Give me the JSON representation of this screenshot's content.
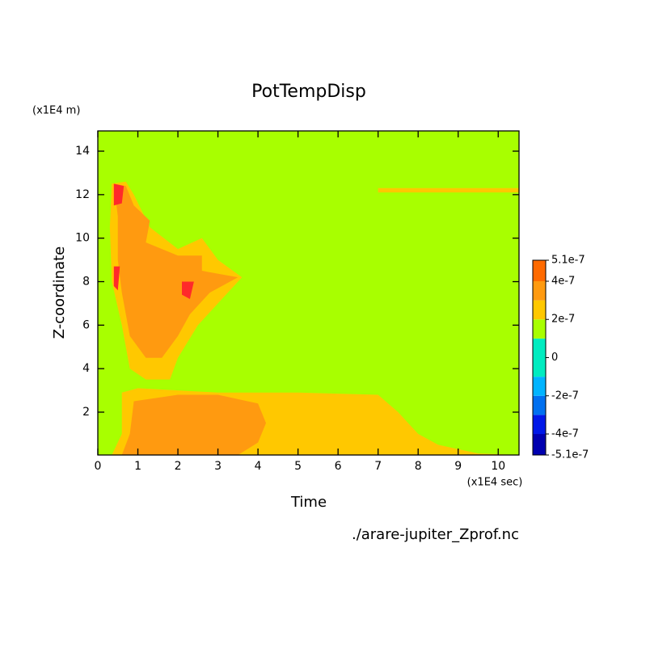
{
  "chart_data": {
    "type": "contour",
    "title": "PotTempDisp",
    "x_label": "Time",
    "x_unit": "(x1E4 sec)",
    "y_label": "Z-coordinate",
    "y_unit": "(x1E4 m)",
    "footer": "./arare-jupiter_Zprof.nc",
    "xlim": [
      0,
      10.52
    ],
    "ylim": [
      0.03,
      14.93
    ],
    "xticks": [
      0,
      1,
      2,
      3,
      4,
      5,
      6,
      7,
      8,
      9,
      10
    ],
    "yticks": [
      2,
      4,
      6,
      8,
      10,
      12,
      14
    ],
    "background_color": "#a8ff00",
    "levels": [
      -5.1e-07,
      -4e-07,
      -3e-07,
      -2e-07,
      -1e-07,
      1e-07,
      2e-07,
      3e-07,
      4e-07,
      5.1e-07
    ],
    "level_colors": [
      "#0000b0",
      "#0018e8",
      "#0070f0",
      "#00b4ff",
      "#00ecc0",
      "#a8ff00",
      "#ffc800",
      "#ff9a10",
      "#ff6a00",
      "#ff2a2a"
    ],
    "colorbar_ticks": [
      {
        "value": 5.1e-07,
        "label": "5.1e-7"
      },
      {
        "value": 4e-07,
        "label": "4e-7"
      },
      {
        "value": 2e-07,
        "label": "2e-7"
      },
      0,
      {
        "value": -2e-07,
        "label": "-2e-7"
      },
      {
        "value": -4e-07,
        "label": "-4e-7"
      },
      {
        "value": -5.1e-07,
        "label": "-5.1e-7"
      }
    ],
    "regions": [
      {
        "color": "#ffc800",
        "x": [
          0.35,
          0.6,
          0.6,
          1,
          3,
          5,
          7,
          7.5,
          8,
          8.5,
          9.5,
          10.52
        ],
        "y": [
          0.03,
          1,
          2.9,
          3.1,
          2.9,
          2.9,
          2.8,
          2,
          1,
          0.5,
          0.1,
          0.03
        ]
      },
      {
        "color": "#ff9a10",
        "x": [
          0.6,
          0.8,
          0.9,
          2,
          3,
          4,
          4.2,
          4,
          3.5
        ],
        "y": [
          0.03,
          1,
          2.5,
          2.8,
          2.8,
          2.4,
          1.5,
          0.6,
          0.03
        ]
      },
      {
        "color": "#ffc800",
        "x": [
          0.35,
          0.7,
          0.9,
          1.3,
          2,
          2.6,
          3,
          3.6,
          3,
          2.5,
          2,
          1.8,
          1.2,
          0.8,
          0.6,
          0.35,
          0.3
        ],
        "y": [
          12.5,
          12.6,
          12,
          10.5,
          9.5,
          10,
          9,
          8.2,
          7,
          6,
          4.5,
          3.5,
          3.5,
          4,
          6,
          8,
          10.5
        ]
      },
      {
        "color": "#ff9a10",
        "x": [
          0.4,
          0.7,
          0.9,
          1.3,
          1.2,
          2,
          2.6,
          2.6,
          3.5,
          2.8,
          2.3,
          2,
          1.6,
          1.2,
          0.8,
          0.6,
          0.5,
          0.5
        ],
        "y": [
          12.5,
          12.4,
          11.5,
          10.8,
          9.8,
          9.2,
          9.2,
          8.5,
          8.2,
          7.5,
          6.5,
          5.5,
          4.5,
          4.5,
          5.5,
          7.5,
          9,
          11
        ]
      },
      {
        "color": "#ff2a2a",
        "x": [
          0.4,
          0.65,
          0.6,
          0.4
        ],
        "y": [
          12.5,
          12.4,
          11.6,
          11.5
        ]
      },
      {
        "color": "#ff2a2a",
        "x": [
          0.4,
          0.55,
          0.5,
          0.4
        ],
        "y": [
          8.7,
          8.7,
          7.6,
          7.8
        ]
      },
      {
        "color": "#ff2a2a",
        "x": [
          2.1,
          2.4,
          2.3,
          2.1
        ],
        "y": [
          8,
          8,
          7.2,
          7.4
        ]
      },
      {
        "color": "#ffc800",
        "x": [
          7,
          10.52,
          10.52,
          7
        ],
        "y": [
          12.3,
          12.3,
          12.1,
          12.1
        ]
      }
    ]
  }
}
